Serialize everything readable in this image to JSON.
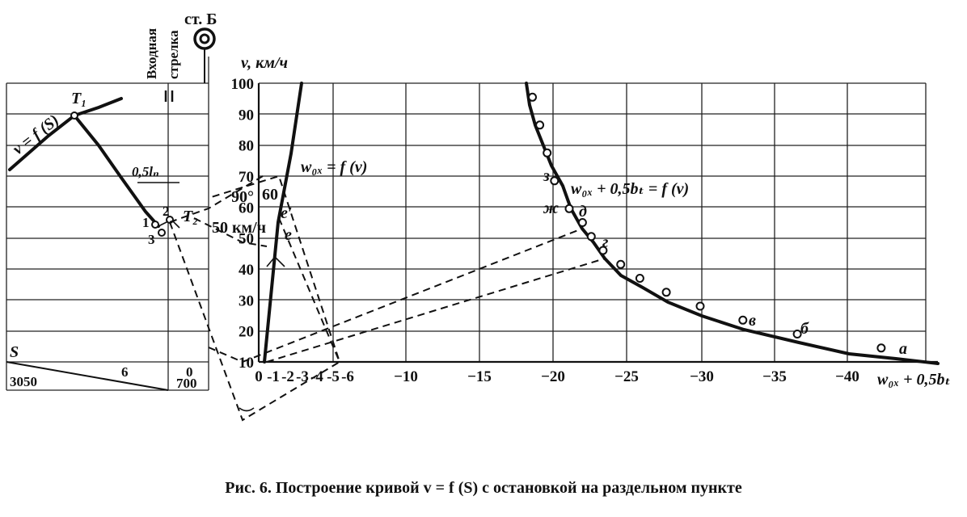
{
  "caption": "Рис. 6. Построение кривой v = f (S) с остановкой на раздельном пункте",
  "station_label": "ст. Б",
  "signal_label_line1": "Входная",
  "signal_label_line2": "стрелка",
  "y_axis_label": "v, км/ч",
  "x_axis_label": "w₀ₓ + 0,5bₜ",
  "y_ticks": [
    "100",
    "90",
    "80",
    "70",
    "60",
    "50",
    "40",
    "30",
    "20",
    "10"
  ],
  "x_ticks": [
    "0",
    "-1",
    "-2",
    "-3",
    "-4",
    "-5",
    "-6",
    "−10",
    "−15",
    "−20",
    "−25",
    "−30",
    "−35",
    "−40"
  ],
  "curve_labels": {
    "vs": "v = f (S)",
    "w0x": "w₀ₓ = f (v)",
    "w0x_b": "w₀ₓ + 0,5bₜ = f (v)"
  },
  "left_labels": {
    "T1": "T₁",
    "T2": "T₂",
    "half_ln": "0,5lₙ",
    "p1": "1",
    "p2": "2",
    "p3": "3",
    "S": "S",
    "s_3050": "3050",
    "s_6": "6",
    "s_0": "0",
    "s_700": "700"
  },
  "construction_labels": {
    "deg90": "90°",
    "v60": "60",
    "v50": "50 км/ч",
    "e_prime": "e′",
    "e": "e"
  },
  "point_letters": [
    "з",
    "ж",
    "д",
    "г",
    "в",
    "б",
    "а"
  ],
  "chart_data": {
    "type": "line",
    "ylabel": "v, км/ч",
    "xlabel": "w₀ₓ + 0,5bₜ",
    "ylim": [
      0,
      100
    ],
    "series": [
      {
        "name": "w₀ₓ + 0,5bₜ = f (v)",
        "points": [
          {
            "x": -18.6,
            "y": 95
          },
          {
            "x": -19.1,
            "y": 85
          },
          {
            "x": -19.6,
            "y": 75
          },
          {
            "x": -20.1,
            "y": 65
          },
          {
            "x": -21.1,
            "y": 55
          },
          {
            "x": -22.0,
            "y": 50
          },
          {
            "x": -22.6,
            "y": 45
          },
          {
            "x": -23.4,
            "y": 40
          },
          {
            "x": -24.6,
            "y": 35
          },
          {
            "x": -25.9,
            "y": 30
          },
          {
            "x": -27.7,
            "y": 25
          },
          {
            "x": -30.0,
            "y": 20
          },
          {
            "x": -32.9,
            "y": 15
          },
          {
            "x": -36.6,
            "y": 10
          },
          {
            "x": -42.3,
            "y": 5
          }
        ]
      },
      {
        "name": "w₀ₓ = f (v)",
        "points": [
          {
            "x": -0.5,
            "y": 0
          },
          {
            "x": -1.3,
            "y": 50
          },
          {
            "x": -1.6,
            "y": 60
          },
          {
            "x": -2.8,
            "y": 100
          }
        ]
      }
    ]
  }
}
